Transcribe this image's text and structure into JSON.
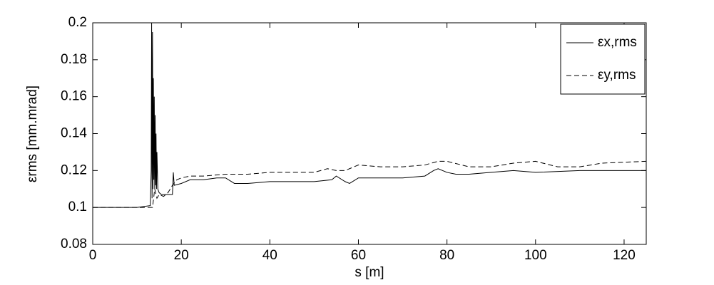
{
  "chart_data": {
    "type": "line",
    "x_label": "s [m]",
    "y_label": "εrms [mm.mrad]",
    "xlim": [
      0,
      125
    ],
    "xticks": [
      0,
      20,
      40,
      60,
      80,
      100,
      120
    ],
    "ylim": [
      0.08,
      0.2
    ],
    "yticks": [
      0.08,
      0.1,
      0.12,
      0.14,
      0.16,
      0.18,
      0.2
    ],
    "grid": false,
    "legend": "top-right",
    "series": [
      {
        "name": "εx,rms",
        "color": "#000000",
        "line_style": "solid",
        "x": [
          0,
          5,
          10,
          13,
          13.2,
          13.3,
          13.4,
          13.5,
          13.6,
          13.7,
          13.8,
          13.9,
          14,
          14.1,
          14.2,
          14.3,
          14.4,
          14.5,
          14.7,
          15,
          15.5,
          16,
          18,
          18.2,
          18.4,
          20,
          22,
          25,
          28,
          30,
          32,
          35,
          40,
          45,
          50,
          54,
          55,
          57,
          58,
          60,
          65,
          70,
          75,
          77,
          78,
          80,
          82,
          85,
          90,
          95,
          100,
          110,
          125
        ],
        "values": [
          0.1,
          0.1,
          0.1,
          0.101,
          0.12,
          0.2,
          0.105,
          0.195,
          0.11,
          0.17,
          0.115,
          0.16,
          0.11,
          0.15,
          0.112,
          0.14,
          0.11,
          0.13,
          0.11,
          0.108,
          0.107,
          0.107,
          0.107,
          0.119,
          0.112,
          0.113,
          0.115,
          0.115,
          0.116,
          0.116,
          0.113,
          0.113,
          0.114,
          0.114,
          0.114,
          0.115,
          0.117,
          0.114,
          0.113,
          0.116,
          0.116,
          0.116,
          0.117,
          0.12,
          0.121,
          0.119,
          0.118,
          0.118,
          0.119,
          0.12,
          0.119,
          0.12,
          0.12
        ]
      },
      {
        "name": "εy,rms",
        "color": "#000000",
        "line_style": "dashed",
        "x": [
          0,
          10,
          13.5,
          14,
          14.5,
          15,
          16,
          17,
          18,
          19,
          20,
          22,
          25,
          30,
          35,
          40,
          50,
          53,
          55,
          57,
          60,
          65,
          70,
          75,
          78,
          80,
          85,
          90,
          95,
          100,
          105,
          110,
          115,
          125
        ],
        "values": [
          0.1,
          0.1,
          0.1,
          0.11,
          0.105,
          0.107,
          0.106,
          0.108,
          0.112,
          0.115,
          0.116,
          0.117,
          0.117,
          0.118,
          0.118,
          0.119,
          0.119,
          0.121,
          0.12,
          0.12,
          0.123,
          0.122,
          0.122,
          0.123,
          0.125,
          0.125,
          0.122,
          0.122,
          0.124,
          0.125,
          0.122,
          0.122,
          0.124,
          0.125
        ]
      }
    ]
  }
}
